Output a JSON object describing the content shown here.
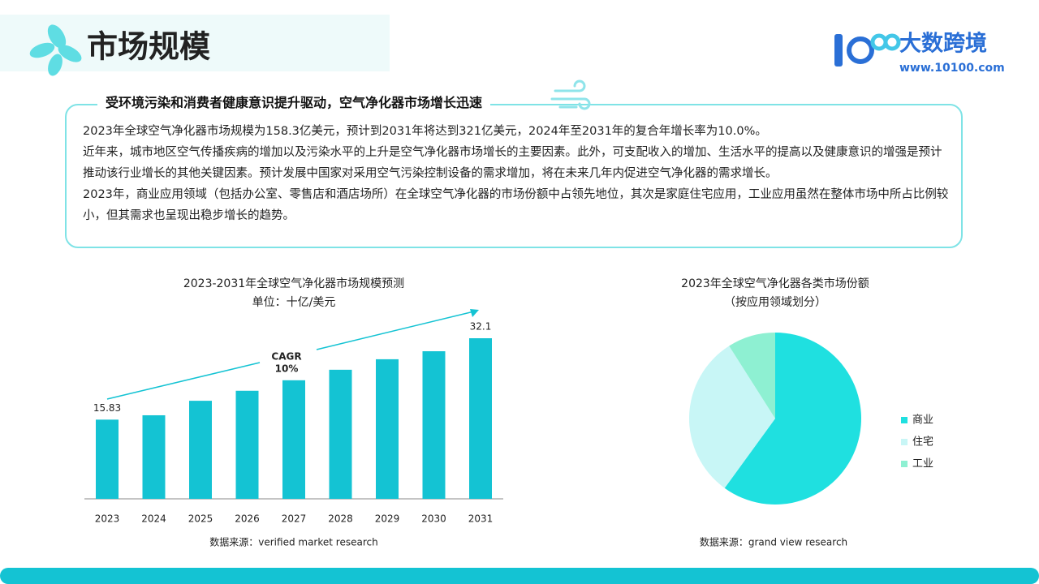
{
  "header": {
    "title": "市场规模",
    "logo_text": "大数跨境",
    "logo_url": "www.10100.com"
  },
  "summary": {
    "heading": "受环境污染和消费者健康意识提升驱动，空气净化器市场增长迅速",
    "paragraphs": [
      "2023年全球空气净化器市场规模为158.3亿美元，预计到2031年将达到321亿美元，2024年至2031年的复合年增长率为10.0%。",
      "近年来，城市地区空气传播疾病的增加以及污染水平的上升是空气净化器市场增长的主要因素。此外，可支配收入的增加、生活水平的提高以及健康意识的增强是预计推动该行业增长的其他关键因素。预计发展中国家对采用空气污染控制设备的需求增加，将在未来几年内促进空气净化器的需求增长。",
      "2023年，商业应用领域（包括办公室、零售店和酒店场所）在全球空气净化器的市场份额中占领先地位，其次是家庭住宅应用，工业应用虽然在整体市场中所占比例较小，但其需求也呈现出稳步增长的趋势。"
    ]
  },
  "chart_data": [
    {
      "type": "bar",
      "title": "2023-2031年全球空气净化器市场规模预测",
      "subtitle": "单位：十亿/美元",
      "categories": [
        "2023",
        "2024",
        "2025",
        "2026",
        "2027",
        "2028",
        "2029",
        "2030",
        "2031"
      ],
      "values": [
        15.83,
        16.7,
        19.6,
        21.6,
        23.7,
        25.8,
        27.9,
        29.5,
        32.1
      ],
      "value_labels": [
        "15.83",
        null,
        null,
        null,
        null,
        null,
        null,
        null,
        "32.1"
      ],
      "color": "#14c3d3",
      "annotation": [
        "CAGR",
        "10%"
      ],
      "source": "数据来源：verified market research"
    },
    {
      "type": "pie",
      "title": "2023年全球空气净化器各类市场份额",
      "subtitle": "（按应用领域划分）",
      "categories": [
        "商业",
        "住宅",
        "工业"
      ],
      "values": [
        60,
        31,
        9
      ],
      "colors": [
        "#1fe0e0",
        "#c8f6f6",
        "#8ef0d2"
      ],
      "source": "数据来源：grand view research"
    }
  ]
}
